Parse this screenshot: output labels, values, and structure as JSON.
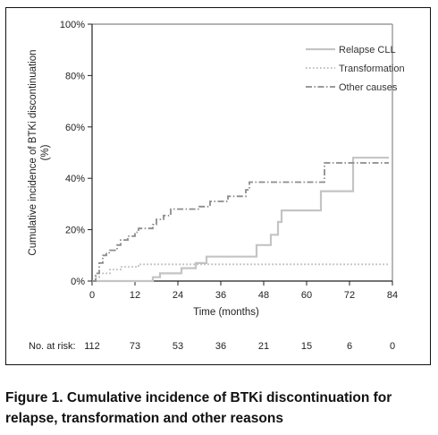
{
  "chart_data": {
    "type": "line",
    "title": "",
    "xlabel": "Time (months)",
    "ylabel": "Cumulative incidence of BTKi discontinuation",
    "ylabel_unit": "(%)",
    "xlim": [
      0,
      84
    ],
    "ylim": [
      0,
      100
    ],
    "x_ticks": [
      0,
      12,
      24,
      36,
      48,
      60,
      72,
      84
    ],
    "y_ticks": [
      0,
      20,
      40,
      60,
      80,
      100
    ],
    "y_tick_labels": [
      "0%",
      "20%",
      "40%",
      "60%",
      "80%",
      "100%"
    ],
    "grid": false,
    "legend_position": "top-right",
    "series": [
      {
        "name": "Relapse CLL",
        "style": "solid",
        "color": "#c4c4c4",
        "points": [
          [
            0,
            0
          ],
          [
            17,
            0
          ],
          [
            17,
            1.5
          ],
          [
            19,
            1.5
          ],
          [
            19,
            3
          ],
          [
            25,
            3
          ],
          [
            25,
            5
          ],
          [
            29,
            5
          ],
          [
            29,
            7
          ],
          [
            32,
            7
          ],
          [
            32,
            9.5
          ],
          [
            46,
            9.5
          ],
          [
            46,
            14
          ],
          [
            50,
            14
          ],
          [
            50,
            18
          ],
          [
            52,
            18
          ],
          [
            52,
            23
          ],
          [
            53,
            23
          ],
          [
            53,
            27.5
          ],
          [
            64,
            27.5
          ],
          [
            64,
            35
          ],
          [
            73,
            35
          ],
          [
            73,
            48
          ],
          [
            83,
            48
          ]
        ]
      },
      {
        "name": "Transformation",
        "style": "dotted",
        "color": "#b8b8b8",
        "points": [
          [
            0,
            0
          ],
          [
            1,
            0
          ],
          [
            1,
            1.5
          ],
          [
            2,
            1.5
          ],
          [
            2,
            3
          ],
          [
            5,
            3
          ],
          [
            5,
            4.5
          ],
          [
            8,
            4.5
          ],
          [
            8,
            5.5
          ],
          [
            13,
            5.5
          ],
          [
            13,
            6.5
          ],
          [
            83,
            6.5
          ]
        ]
      },
      {
        "name": "Other causes",
        "style": "dash-dot",
        "color": "#8c8c8c",
        "points": [
          [
            0,
            0
          ],
          [
            1,
            0
          ],
          [
            1,
            3
          ],
          [
            2,
            3
          ],
          [
            2,
            7
          ],
          [
            3,
            7
          ],
          [
            3,
            10
          ],
          [
            4,
            10
          ],
          [
            4,
            11
          ],
          [
            5,
            11
          ],
          [
            5,
            12
          ],
          [
            7,
            12
          ],
          [
            7,
            14
          ],
          [
            8,
            14
          ],
          [
            8,
            16
          ],
          [
            10,
            16
          ],
          [
            10,
            17.5
          ],
          [
            12,
            17.5
          ],
          [
            12,
            19
          ],
          [
            13,
            19
          ],
          [
            13,
            20.5
          ],
          [
            17,
            20.5
          ],
          [
            17,
            22
          ],
          [
            18,
            22
          ],
          [
            18,
            24
          ],
          [
            20,
            24
          ],
          [
            20,
            25.5
          ],
          [
            22,
            25.5
          ],
          [
            22,
            28
          ],
          [
            30,
            28
          ],
          [
            30,
            29
          ],
          [
            33,
            29
          ],
          [
            33,
            31
          ],
          [
            38,
            31
          ],
          [
            38,
            33
          ],
          [
            43,
            33
          ],
          [
            43,
            35.5
          ],
          [
            44,
            35.5
          ],
          [
            44,
            38.5
          ],
          [
            65,
            38.5
          ],
          [
            65,
            46
          ],
          [
            83,
            46
          ]
        ]
      }
    ]
  },
  "at_risk": {
    "label": "No. at risk:",
    "times": [
      0,
      12,
      24,
      36,
      48,
      60,
      72,
      84
    ],
    "counts": [
      "112",
      "73",
      "53",
      "36",
      "21",
      "15",
      "6",
      "0"
    ]
  },
  "caption": {
    "line1": "Figure 1. Cumulative incidence of BTKi discontinuation for",
    "line2": "relapse, transformation and other reasons"
  }
}
